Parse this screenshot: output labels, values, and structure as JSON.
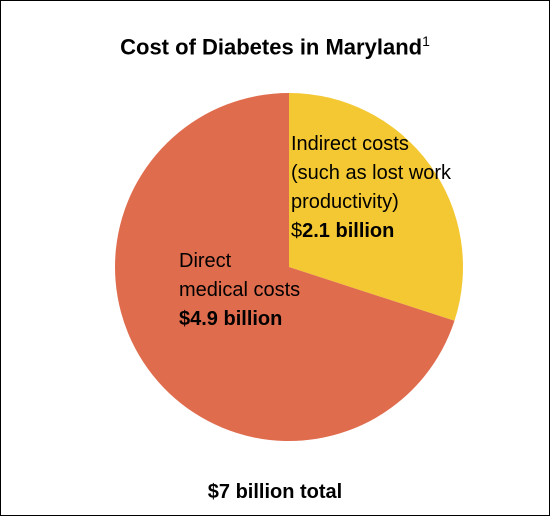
{
  "chart_data": {
    "type": "pie",
    "title": "Cost of Diabetes in Maryland",
    "title_superscript": "1",
    "slices": [
      {
        "name_lines": [
          "Indirect costs",
          "(such as lost work",
          "productivity)"
        ],
        "value": 2.1,
        "value_prefix": "$",
        "value_text": "2.1 billion",
        "color": "#F4C832"
      },
      {
        "name_lines": [
          "Direct",
          "medical costs"
        ],
        "value": 4.9,
        "value_prefix": "",
        "value_text": "$4.9 billion",
        "color": "#E06C4E"
      }
    ],
    "start_angle": "12 o'clock",
    "direction": "clockwise",
    "legend": "none",
    "footer": "$7 billion total"
  }
}
